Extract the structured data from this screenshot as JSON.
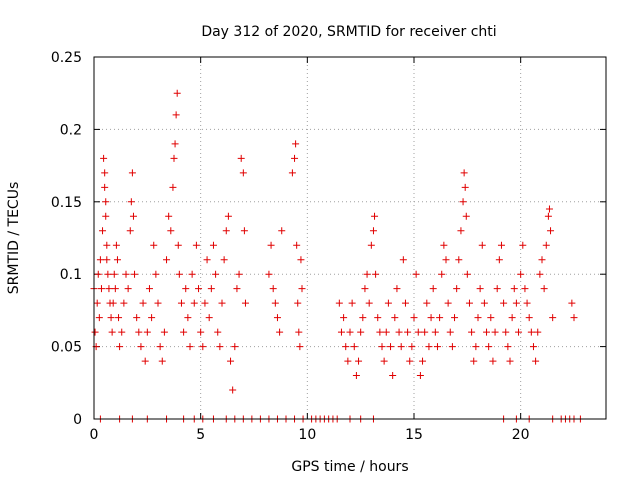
{
  "chart_data": {
    "type": "scatter",
    "title": "Day 312 of 2020, SRMTID for receiver chti",
    "xlabel": "GPS time / hours",
    "ylabel": "SRMTID / TECUs",
    "xlim": [
      0,
      24
    ],
    "ylim": [
      0,
      0.25
    ],
    "xticks": [
      0,
      5,
      10,
      15,
      20
    ],
    "yticks": [
      0,
      0.05,
      0.1,
      0.15,
      0.2,
      0.25
    ],
    "xtick_labels": [
      "0",
      "5",
      "10",
      "15",
      "20"
    ],
    "ytick_labels": [
      "0",
      "0.05",
      "0.1",
      "0.15",
      "0.2",
      "0.25"
    ],
    "grid": true,
    "marker": "+",
    "color": "#e00000",
    "series": [
      {
        "name": "SRMTID",
        "points": [
          [
            0.0,
            0.09
          ],
          [
            0.05,
            0.06
          ],
          [
            0.1,
            0.05
          ],
          [
            0.15,
            0.08
          ],
          [
            0.2,
            0.1
          ],
          [
            0.25,
            0.07
          ],
          [
            0.3,
            0.11
          ],
          [
            0.35,
            0.09
          ],
          [
            0.4,
            0.13
          ],
          [
            0.45,
            0.18
          ],
          [
            0.5,
            0.17
          ],
          [
            0.5,
            0.16
          ],
          [
            0.55,
            0.15
          ],
          [
            0.55,
            0.14
          ],
          [
            0.6,
            0.12
          ],
          [
            0.6,
            0.11
          ],
          [
            0.65,
            0.1
          ],
          [
            0.7,
            0.09
          ],
          [
            0.75,
            0.08
          ],
          [
            0.8,
            0.07
          ],
          [
            0.85,
            0.06
          ],
          [
            0.9,
            0.08
          ],
          [
            0.95,
            0.1
          ],
          [
            1.0,
            0.09
          ],
          [
            1.05,
            0.12
          ],
          [
            1.1,
            0.11
          ],
          [
            1.15,
            0.07
          ],
          [
            1.2,
            0.05
          ],
          [
            1.3,
            0.06
          ],
          [
            1.4,
            0.08
          ],
          [
            1.5,
            0.1
          ],
          [
            1.6,
            0.09
          ],
          [
            1.7,
            0.13
          ],
          [
            1.75,
            0.15
          ],
          [
            1.8,
            0.17
          ],
          [
            1.85,
            0.14
          ],
          [
            1.9,
            0.1
          ],
          [
            2.0,
            0.07
          ],
          [
            2.1,
            0.06
          ],
          [
            2.2,
            0.05
          ],
          [
            2.3,
            0.08
          ],
          [
            2.4,
            0.04
          ],
          [
            2.5,
            0.06
          ],
          [
            2.6,
            0.09
          ],
          [
            2.7,
            0.07
          ],
          [
            2.8,
            0.12
          ],
          [
            2.9,
            0.1
          ],
          [
            3.0,
            0.08
          ],
          [
            3.1,
            0.05
          ],
          [
            3.2,
            0.04
          ],
          [
            3.3,
            0.06
          ],
          [
            3.4,
            0.11
          ],
          [
            3.5,
            0.14
          ],
          [
            3.6,
            0.13
          ],
          [
            3.7,
            0.16
          ],
          [
            3.75,
            0.18
          ],
          [
            3.8,
            0.19
          ],
          [
            3.85,
            0.21
          ],
          [
            3.9,
            0.225
          ],
          [
            3.95,
            0.12
          ],
          [
            4.0,
            0.1
          ],
          [
            4.1,
            0.08
          ],
          [
            4.2,
            0.06
          ],
          [
            4.3,
            0.09
          ],
          [
            4.4,
            0.07
          ],
          [
            4.5,
            0.05
          ],
          [
            4.6,
            0.1
          ],
          [
            4.7,
            0.08
          ],
          [
            4.8,
            0.12
          ],
          [
            4.9,
            0.09
          ],
          [
            5.0,
            0.06
          ],
          [
            5.1,
            0.05
          ],
          [
            5.2,
            0.08
          ],
          [
            5.3,
            0.11
          ],
          [
            5.4,
            0.07
          ],
          [
            5.5,
            0.09
          ],
          [
            5.6,
            0.12
          ],
          [
            5.7,
            0.1
          ],
          [
            5.8,
            0.06
          ],
          [
            5.9,
            0.05
          ],
          [
            6.0,
            0.08
          ],
          [
            6.1,
            0.11
          ],
          [
            6.2,
            0.13
          ],
          [
            6.3,
            0.14
          ],
          [
            6.4,
            0.04
          ],
          [
            6.5,
            0.02
          ],
          [
            6.6,
            0.05
          ],
          [
            6.7,
            0.09
          ],
          [
            6.8,
            0.1
          ],
          [
            6.9,
            0.18
          ],
          [
            7.0,
            0.17
          ],
          [
            7.05,
            0.13
          ],
          [
            7.1,
            0.08
          ],
          [
            8.2,
            0.1
          ],
          [
            8.3,
            0.12
          ],
          [
            8.4,
            0.09
          ],
          [
            8.5,
            0.08
          ],
          [
            8.6,
            0.07
          ],
          [
            8.7,
            0.06
          ],
          [
            8.8,
            0.13
          ],
          [
            9.3,
            0.17
          ],
          [
            9.4,
            0.18
          ],
          [
            9.45,
            0.19
          ],
          [
            9.5,
            0.12
          ],
          [
            9.55,
            0.08
          ],
          [
            9.6,
            0.06
          ],
          [
            9.65,
            0.05
          ],
          [
            9.7,
            0.11
          ],
          [
            9.75,
            0.09
          ],
          [
            11.5,
            0.08
          ],
          [
            11.6,
            0.06
          ],
          [
            11.7,
            0.07
          ],
          [
            11.8,
            0.05
          ],
          [
            11.9,
            0.04
          ],
          [
            12.0,
            0.06
          ],
          [
            12.1,
            0.08
          ],
          [
            12.2,
            0.05
          ],
          [
            12.3,
            0.03
          ],
          [
            12.4,
            0.04
          ],
          [
            12.5,
            0.06
          ],
          [
            12.6,
            0.07
          ],
          [
            12.7,
            0.09
          ],
          [
            12.8,
            0.1
          ],
          [
            12.9,
            0.08
          ],
          [
            13.0,
            0.12
          ],
          [
            13.1,
            0.13
          ],
          [
            13.15,
            0.14
          ],
          [
            13.2,
            0.1
          ],
          [
            13.3,
            0.07
          ],
          [
            13.4,
            0.06
          ],
          [
            13.5,
            0.05
          ],
          [
            13.6,
            0.04
          ],
          [
            13.7,
            0.06
          ],
          [
            13.8,
            0.08
          ],
          [
            13.9,
            0.05
          ],
          [
            14.0,
            0.03
          ],
          [
            14.1,
            0.07
          ],
          [
            14.2,
            0.09
          ],
          [
            14.3,
            0.06
          ],
          [
            14.4,
            0.05
          ],
          [
            14.5,
            0.11
          ],
          [
            14.6,
            0.08
          ],
          [
            14.7,
            0.06
          ],
          [
            14.8,
            0.04
          ],
          [
            14.9,
            0.05
          ],
          [
            15.0,
            0.07
          ],
          [
            15.1,
            0.1
          ],
          [
            15.2,
            0.06
          ],
          [
            15.3,
            0.03
          ],
          [
            15.4,
            0.04
          ],
          [
            15.5,
            0.06
          ],
          [
            15.6,
            0.08
          ],
          [
            15.7,
            0.05
          ],
          [
            15.8,
            0.07
          ],
          [
            15.9,
            0.09
          ],
          [
            16.0,
            0.06
          ],
          [
            16.1,
            0.05
          ],
          [
            16.2,
            0.07
          ],
          [
            16.3,
            0.1
          ],
          [
            16.4,
            0.12
          ],
          [
            16.5,
            0.11
          ],
          [
            16.6,
            0.08
          ],
          [
            16.7,
            0.06
          ],
          [
            16.8,
            0.05
          ],
          [
            16.9,
            0.07
          ],
          [
            17.0,
            0.09
          ],
          [
            17.1,
            0.11
          ],
          [
            17.2,
            0.13
          ],
          [
            17.3,
            0.15
          ],
          [
            17.35,
            0.17
          ],
          [
            17.4,
            0.16
          ],
          [
            17.45,
            0.14
          ],
          [
            17.5,
            0.1
          ],
          [
            17.6,
            0.08
          ],
          [
            17.7,
            0.06
          ],
          [
            17.8,
            0.04
          ],
          [
            17.9,
            0.05
          ],
          [
            18.0,
            0.07
          ],
          [
            18.1,
            0.09
          ],
          [
            18.2,
            0.12
          ],
          [
            18.3,
            0.08
          ],
          [
            18.4,
            0.06
          ],
          [
            18.5,
            0.05
          ],
          [
            18.6,
            0.07
          ],
          [
            18.7,
            0.04
          ],
          [
            18.8,
            0.06
          ],
          [
            18.9,
            0.09
          ],
          [
            19.0,
            0.11
          ],
          [
            19.1,
            0.12
          ],
          [
            19.2,
            0.08
          ],
          [
            19.3,
            0.06
          ],
          [
            19.4,
            0.05
          ],
          [
            19.5,
            0.04
          ],
          [
            19.6,
            0.07
          ],
          [
            19.7,
            0.09
          ],
          [
            19.8,
            0.08
          ],
          [
            19.9,
            0.06
          ],
          [
            20.0,
            0.1
          ],
          [
            20.1,
            0.12
          ],
          [
            20.2,
            0.09
          ],
          [
            20.3,
            0.08
          ],
          [
            20.4,
            0.07
          ],
          [
            20.5,
            0.06
          ],
          [
            20.6,
            0.05
          ],
          [
            20.7,
            0.04
          ],
          [
            20.8,
            0.06
          ],
          [
            20.9,
            0.1
          ],
          [
            21.0,
            0.11
          ],
          [
            21.1,
            0.09
          ],
          [
            21.2,
            0.12
          ],
          [
            21.3,
            0.14
          ],
          [
            21.35,
            0.145
          ],
          [
            21.4,
            0.13
          ],
          [
            21.5,
            0.07
          ],
          [
            22.4,
            0.08
          ],
          [
            22.5,
            0.07
          ],
          [
            0.3,
            0.0
          ],
          [
            1.2,
            0.0
          ],
          [
            1.8,
            0.0
          ],
          [
            2.5,
            0.0
          ],
          [
            3.4,
            0.0
          ],
          [
            4.2,
            0.0
          ],
          [
            4.7,
            0.0
          ],
          [
            5.1,
            0.0
          ],
          [
            5.6,
            0.0
          ],
          [
            6.2,
            0.0
          ],
          [
            6.6,
            0.0
          ],
          [
            7.0,
            0.0
          ],
          [
            7.4,
            0.0
          ],
          [
            7.8,
            0.0
          ],
          [
            8.2,
            0.0
          ],
          [
            8.6,
            0.0
          ],
          [
            9.0,
            0.0
          ],
          [
            9.4,
            0.0
          ],
          [
            9.8,
            0.0
          ],
          [
            10.2,
            0.0
          ],
          [
            10.4,
            0.0
          ],
          [
            10.6,
            0.0
          ],
          [
            10.8,
            0.0
          ],
          [
            11.0,
            0.0
          ],
          [
            11.2,
            0.0
          ],
          [
            11.4,
            0.0
          ],
          [
            12.0,
            0.0
          ],
          [
            12.5,
            0.0
          ],
          [
            13.1,
            0.0
          ],
          [
            19.2,
            0.0
          ],
          [
            19.8,
            0.0
          ],
          [
            20.4,
            0.0
          ],
          [
            21.5,
            0.0
          ],
          [
            21.9,
            0.0
          ],
          [
            22.1,
            0.0
          ],
          [
            22.3,
            0.0
          ],
          [
            22.5,
            0.0
          ],
          [
            22.8,
            0.0
          ]
        ]
      }
    ]
  }
}
